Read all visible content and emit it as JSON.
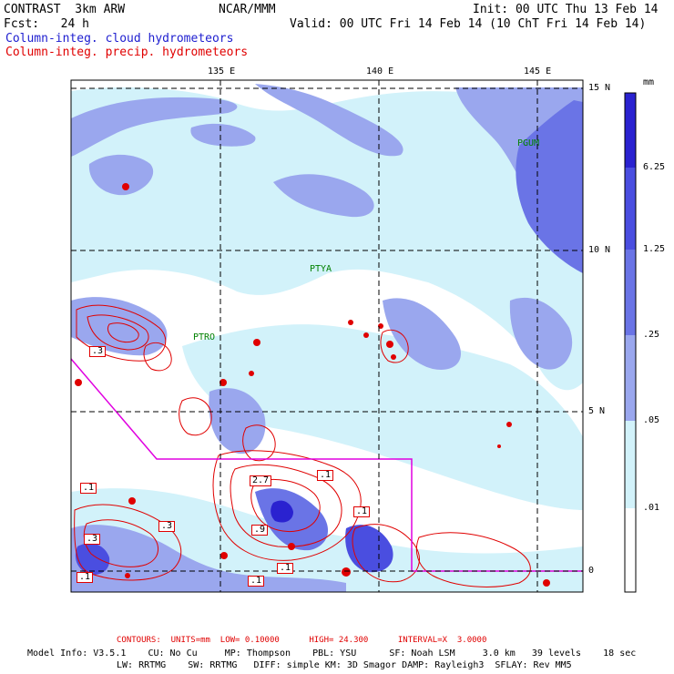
{
  "header": {
    "model": "CONTRAST  3km ARW",
    "center": "NCAR/MMM",
    "init": "Init: 00 UTC Thu 13 Feb 14",
    "fcst": "Fcst:   24 h",
    "valid": "Valid: 00 UTC Fri 14 Feb 14 (10 ChT Fri 14 Feb 14)",
    "field1": "Column-integ. cloud hydrometeors",
    "field2": "Column-integ. precip. hydrometeors"
  },
  "colors": {
    "cloud_light": "#d2f2fa",
    "cloud_mid": "#9aa7ee",
    "cloud_dark": "#6a74e6",
    "cloud_darker": "#4a4ee0",
    "cloud_darkest": "#2a22d0",
    "contour": "#e00000",
    "boundary": "#e000e0"
  },
  "map": {
    "lon_labels": [
      "135 E",
      "140 E",
      "145 E"
    ],
    "lat_labels": [
      "15 N",
      "10 N",
      "5 N",
      "0"
    ],
    "stations": [
      "PGUM",
      "PTYA",
      "PTRO"
    ],
    "contour_labels": [
      ".3",
      ".1",
      "2.7",
      ".1",
      ".1",
      ".3",
      ".3",
      ".9",
      ".1",
      ".1",
      ".1"
    ]
  },
  "colorbar": {
    "unit": "mm",
    "labels": [
      "6.25",
      "1.25",
      ".25",
      ".05",
      ".01"
    ],
    "levels": [
      6.25,
      1.25,
      0.25,
      0.05,
      0.01
    ]
  },
  "footer": {
    "contours": "CONTOURS:  UNITS=mm  LOW= 0.10000      HIGH= 24.300      INTERVAL=X  3.0000",
    "model_line1": "Model Info: V3.5.1    CU: No Cu     MP: Thompson    PBL: YSU      SF: Noah LSM     3.0 km   39 levels    18 sec",
    "model_line2": "LW: RRTMG    SW: RRTMG   DIFF: simple KM: 3D Smagor DAMP: Rayleigh3  SFLAY: Rev MM5"
  }
}
